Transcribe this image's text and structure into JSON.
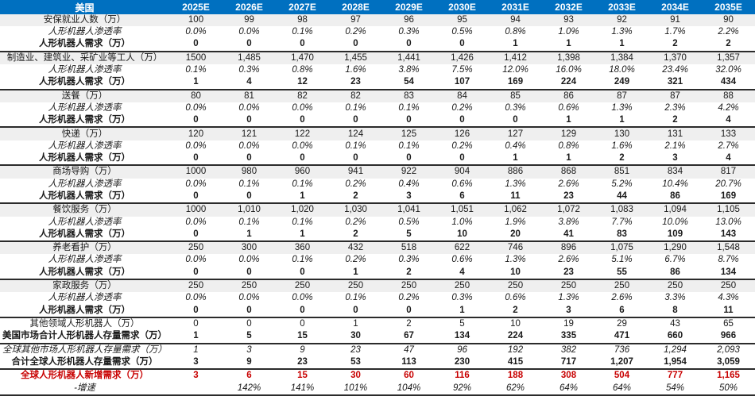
{
  "chart_data": {
    "type": "table",
    "region_label": "美国",
    "years": [
      "2025E",
      "2026E",
      "2027E",
      "2028E",
      "2029E",
      "2030E",
      "2031E",
      "2032E",
      "2033E",
      "2034E",
      "2035E"
    ],
    "rows": [
      {
        "name": "security-employment",
        "label": "安保就业人数（万）",
        "type": "base",
        "section_start": false,
        "values": [
          "100",
          "99",
          "98",
          "97",
          "96",
          "95",
          "94",
          "93",
          "92",
          "91",
          "90"
        ]
      },
      {
        "name": "security-penetration",
        "label": "人形机器人渗透率",
        "type": "pct",
        "section_start": false,
        "values": [
          "0.0%",
          "0.0%",
          "0.1%",
          "0.2%",
          "0.3%",
          "0.5%",
          "0.8%",
          "1.0%",
          "1.3%",
          "1.7%",
          "2.2%"
        ]
      },
      {
        "name": "security-robot-demand",
        "label": "人形机器人需求（万）",
        "type": "demand",
        "section_start": false,
        "values": [
          "0",
          "0",
          "0",
          "0",
          "0",
          "0",
          "1",
          "1",
          "1",
          "2",
          "2"
        ]
      },
      {
        "name": "industry-workers",
        "label": "制造业、建筑业、采矿业等工人（万）",
        "type": "base",
        "section_start": true,
        "values": [
          "1500",
          "1,485",
          "1,470",
          "1,455",
          "1,441",
          "1,426",
          "1,412",
          "1,398",
          "1,384",
          "1,370",
          "1,357"
        ]
      },
      {
        "name": "industry-penetration",
        "label": "人形机器人渗透率",
        "type": "pct",
        "section_start": false,
        "values": [
          "0.1%",
          "0.3%",
          "0.8%",
          "1.6%",
          "3.8%",
          "7.5%",
          "12.0%",
          "16.0%",
          "18.0%",
          "23.4%",
          "32.0%"
        ]
      },
      {
        "name": "industry-robot-demand",
        "label": "人形机器人需求（万）",
        "type": "demand",
        "section_start": false,
        "values": [
          "1",
          "4",
          "12",
          "23",
          "54",
          "107",
          "169",
          "224",
          "249",
          "321",
          "434"
        ]
      },
      {
        "name": "meal-delivery-workers",
        "label": "送餐（万）",
        "type": "base",
        "section_start": true,
        "values": [
          "80",
          "81",
          "82",
          "82",
          "83",
          "84",
          "85",
          "86",
          "87",
          "87",
          "88"
        ]
      },
      {
        "name": "meal-delivery-penetration",
        "label": "人形机器人渗透率",
        "type": "pct",
        "section_start": false,
        "values": [
          "0.0%",
          "0.0%",
          "0.0%",
          "0.1%",
          "0.1%",
          "0.2%",
          "0.3%",
          "0.6%",
          "1.3%",
          "2.3%",
          "4.2%"
        ]
      },
      {
        "name": "meal-delivery-robot-demand",
        "label": "人形机器人需求（万）",
        "type": "demand",
        "section_start": false,
        "values": [
          "0",
          "0",
          "0",
          "0",
          "0",
          "0",
          "0",
          "1",
          "1",
          "2",
          "4"
        ]
      },
      {
        "name": "express-workers",
        "label": "快递（万）",
        "type": "base",
        "section_start": true,
        "values": [
          "120",
          "121",
          "122",
          "124",
          "125",
          "126",
          "127",
          "129",
          "130",
          "131",
          "133"
        ]
      },
      {
        "name": "express-penetration",
        "label": "人形机器人渗透率",
        "type": "pct",
        "section_start": false,
        "values": [
          "0.0%",
          "0.0%",
          "0.0%",
          "0.1%",
          "0.1%",
          "0.2%",
          "0.4%",
          "0.8%",
          "1.6%",
          "2.1%",
          "2.7%"
        ]
      },
      {
        "name": "express-robot-demand",
        "label": "人形机器人需求（万）",
        "type": "demand",
        "section_start": false,
        "values": [
          "0",
          "0",
          "0",
          "0",
          "0",
          "0",
          "1",
          "1",
          "2",
          "3",
          "4"
        ]
      },
      {
        "name": "mall-guide-workers",
        "label": "商场导购（万）",
        "type": "base",
        "section_start": true,
        "values": [
          "1000",
          "980",
          "960",
          "941",
          "922",
          "904",
          "886",
          "868",
          "851",
          "834",
          "817"
        ]
      },
      {
        "name": "mall-guide-penetration",
        "label": "人形机器人渗透率",
        "type": "pct",
        "section_start": false,
        "values": [
          "0.0%",
          "0.1%",
          "0.1%",
          "0.2%",
          "0.4%",
          "0.6%",
          "1.3%",
          "2.6%",
          "5.2%",
          "10.4%",
          "20.7%"
        ]
      },
      {
        "name": "mall-guide-robot-demand",
        "label": "人形机器人需求（万）",
        "type": "demand",
        "section_start": false,
        "values": [
          "0",
          "0",
          "1",
          "2",
          "3",
          "6",
          "11",
          "23",
          "44",
          "86",
          "169"
        ]
      },
      {
        "name": "catering-workers",
        "label": "餐饮服务（万）",
        "type": "base",
        "section_start": true,
        "values": [
          "1000",
          "1,010",
          "1,020",
          "1,030",
          "1,041",
          "1,051",
          "1,062",
          "1,072",
          "1,083",
          "1,094",
          "1,105"
        ]
      },
      {
        "name": "catering-penetration",
        "label": "人形机器人渗透率",
        "type": "pct",
        "section_start": false,
        "values": [
          "0.0%",
          "0.1%",
          "0.1%",
          "0.2%",
          "0.5%",
          "1.0%",
          "1.9%",
          "3.8%",
          "7.7%",
          "10.0%",
          "13.0%"
        ]
      },
      {
        "name": "catering-robot-demand",
        "label": "人形机器人需求（万）",
        "type": "demand",
        "section_start": false,
        "values": [
          "0",
          "1",
          "1",
          "2",
          "5",
          "10",
          "20",
          "41",
          "83",
          "109",
          "143"
        ]
      },
      {
        "name": "eldercare-workers",
        "label": "养老看护（万）",
        "type": "base",
        "section_start": true,
        "values": [
          "250",
          "300",
          "360",
          "432",
          "518",
          "622",
          "746",
          "896",
          "1,075",
          "1,290",
          "1,548"
        ]
      },
      {
        "name": "eldercare-penetration",
        "label": "人形机器人渗透率",
        "type": "pct",
        "section_start": false,
        "values": [
          "0.0%",
          "0.0%",
          "0.1%",
          "0.2%",
          "0.3%",
          "0.6%",
          "1.3%",
          "2.6%",
          "5.1%",
          "6.7%",
          "8.7%"
        ]
      },
      {
        "name": "eldercare-robot-demand",
        "label": "人形机器人需求（万）",
        "type": "demand",
        "section_start": false,
        "values": [
          "0",
          "0",
          "0",
          "1",
          "2",
          "4",
          "10",
          "23",
          "55",
          "86",
          "134"
        ]
      },
      {
        "name": "housekeeping-workers",
        "label": "家政服务（万）",
        "type": "base",
        "section_start": true,
        "values": [
          "250",
          "250",
          "250",
          "250",
          "250",
          "250",
          "250",
          "250",
          "250",
          "250",
          "250"
        ]
      },
      {
        "name": "housekeeping-penetration",
        "label": "人形机器人渗透率",
        "type": "pct",
        "section_start": false,
        "values": [
          "0.0%",
          "0.0%",
          "0.0%",
          "0.1%",
          "0.2%",
          "0.3%",
          "0.6%",
          "1.3%",
          "2.6%",
          "3.3%",
          "4.3%"
        ]
      },
      {
        "name": "housekeeping-robot-demand",
        "label": "人形机器人需求（万）",
        "type": "demand",
        "section_start": false,
        "values": [
          "0",
          "0",
          "0",
          "0",
          "0",
          "1",
          "2",
          "3",
          "6",
          "8",
          "11"
        ]
      },
      {
        "name": "other-fields-robots",
        "label": "其他领域人形机器人（万）",
        "type": "other",
        "section_start": true,
        "values": [
          "0",
          "0",
          "0",
          "1",
          "2",
          "5",
          "10",
          "19",
          "29",
          "43",
          "65"
        ]
      },
      {
        "name": "us-market-total-stock-demand",
        "label": "美国市场合计人形机器人存量需求（万）",
        "type": "ustotal",
        "section_start": false,
        "values": [
          "1",
          "5",
          "15",
          "30",
          "67",
          "134",
          "224",
          "335",
          "471",
          "660",
          "966"
        ]
      },
      {
        "name": "global-other-markets-stock-demand",
        "label": "全球其他市场人形机器人存量需求（万）",
        "type": "wother",
        "section_start": true,
        "values": [
          "1",
          "3",
          "9",
          "23",
          "47",
          "96",
          "192",
          "382",
          "736",
          "1,294",
          "2,093"
        ]
      },
      {
        "name": "global-total-stock-demand",
        "label": "合计全球人形机器人存量需求（万）",
        "type": "wtotal",
        "section_start": false,
        "values": [
          "3",
          "9",
          "23",
          "53",
          "113",
          "230",
          "415",
          "717",
          "1,207",
          "1,954",
          "3,059"
        ]
      },
      {
        "name": "global-new-demand",
        "label": "全球人形机器人新增需求（万）",
        "type": "newdemand",
        "section_start": true,
        "values": [
          "3",
          "6",
          "15",
          "30",
          "60",
          "116",
          "188",
          "308",
          "504",
          "777",
          "1,165"
        ]
      },
      {
        "name": "growth-rate",
        "label": "-增速",
        "type": "growth",
        "section_start": false,
        "values": [
          "",
          "142%",
          "141%",
          "101%",
          "104%",
          "92%",
          "62%",
          "64%",
          "64%",
          "54%",
          "50%"
        ]
      }
    ],
    "colors": {
      "header_bg": "#0070C0",
      "header_text": "#FFFFFF",
      "band_bg": "#EFEFEF",
      "highlight_red": "#C80000",
      "section_border": "#2B2B2B"
    }
  }
}
